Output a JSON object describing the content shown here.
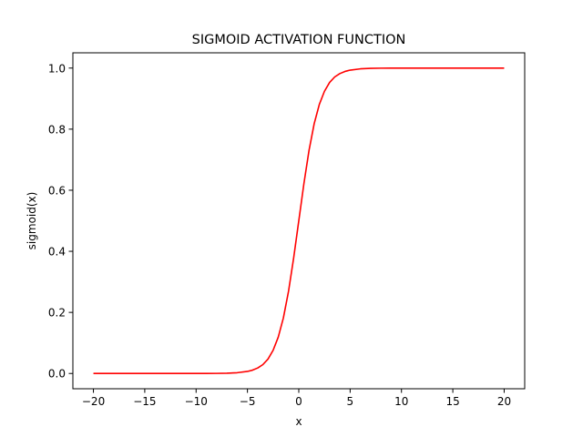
{
  "chart_data": {
    "type": "line",
    "title": "SIGMOID ACTIVATION FUNCTION",
    "xlabel": "x",
    "ylabel": "sigmoid(x)",
    "xlim": [
      -22,
      22
    ],
    "ylim": [
      -0.05,
      1.05
    ],
    "xticks": [
      -20,
      -15,
      -10,
      -5,
      0,
      5,
      10,
      15,
      20
    ],
    "xtick_labels": [
      "−20",
      "−15",
      "−10",
      "−5",
      "0",
      "5",
      "10",
      "15",
      "20"
    ],
    "yticks": [
      0.0,
      0.2,
      0.4,
      0.6,
      0.8,
      1.0
    ],
    "ytick_labels": [
      "0.0",
      "0.2",
      "0.4",
      "0.6",
      "0.8",
      "1.0"
    ],
    "grid": false,
    "series": [
      {
        "color": "#ff0000",
        "x": [
          -20,
          -18,
          -16,
          -14,
          -12,
          -10,
          -9,
          -8,
          -7,
          -6,
          -5,
          -4.5,
          -4,
          -3.5,
          -3,
          -2.5,
          -2,
          -1.5,
          -1,
          -0.5,
          0,
          0.5,
          1,
          1.5,
          2,
          2.5,
          3,
          3.5,
          4,
          4.5,
          5,
          6,
          7,
          8,
          9,
          10,
          12,
          14,
          16,
          18,
          20
        ],
        "y": [
          0.0,
          0.0,
          0.0,
          0.0,
          0.0,
          0.0,
          0.0001,
          0.0003,
          0.0009,
          0.0025,
          0.0067,
          0.011,
          0.018,
          0.029,
          0.047,
          0.076,
          0.119,
          0.182,
          0.269,
          0.378,
          0.5,
          0.622,
          0.731,
          0.818,
          0.881,
          0.924,
          0.953,
          0.971,
          0.982,
          0.989,
          0.9933,
          0.9975,
          0.9991,
          0.9997,
          0.9999,
          1.0,
          1.0,
          1.0,
          1.0,
          1.0,
          1.0
        ]
      }
    ]
  }
}
